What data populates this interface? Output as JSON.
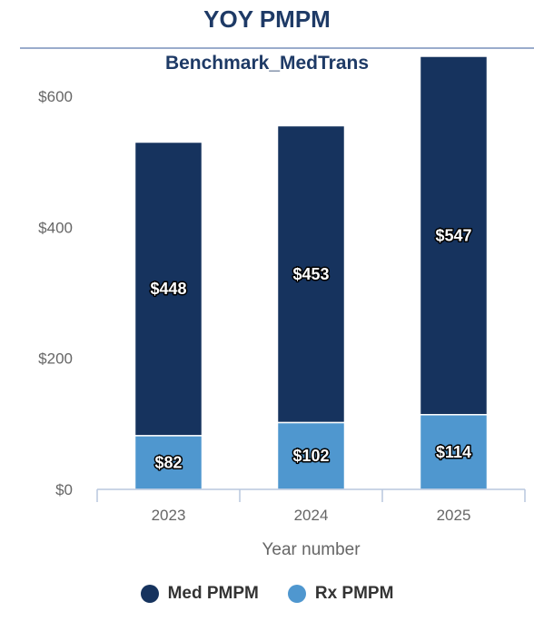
{
  "chart_data": {
    "type": "bar",
    "stacked": true,
    "title": "YOY PMPM",
    "subtitle": "Benchmark_MedTrans",
    "xlabel": "Year number",
    "ylabel": "",
    "categories": [
      "2023",
      "2024",
      "2025"
    ],
    "ylim": [
      0,
      600
    ],
    "yticks": [
      0,
      200,
      400,
      600
    ],
    "ytick_labels": [
      "$0",
      "$200",
      "$400",
      "$600"
    ],
    "series": [
      {
        "name": "Rx PMPM",
        "color": "#4f97cf",
        "values": [
          82,
          102,
          114
        ],
        "labels": [
          "$82",
          "$102",
          "$114"
        ]
      },
      {
        "name": "Med PMPM",
        "color": "#16335e",
        "values": [
          448,
          453,
          547
        ],
        "labels": [
          "$448",
          "$453",
          "$547"
        ]
      }
    ],
    "legend": [
      "Med PMPM",
      "Rx PMPM"
    ],
    "legend_position": "bottom",
    "grid": false
  }
}
